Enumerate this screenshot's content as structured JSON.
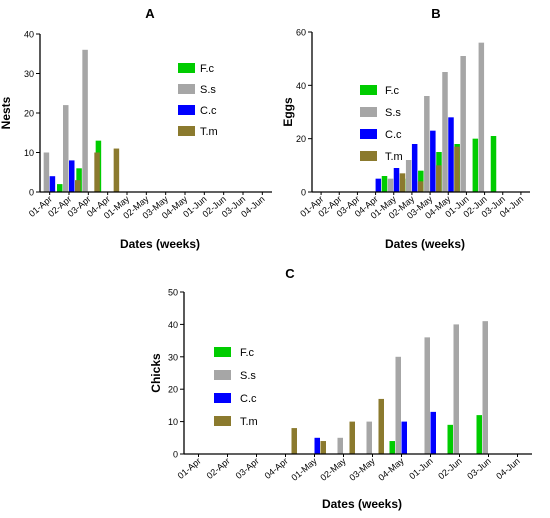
{
  "colors": {
    "F.c": "#00cc00",
    "S.s": "#a6a6a6",
    "C.c": "#0000ff",
    "T.m": "#8b7a2e"
  },
  "chart_data": [
    {
      "id": "A",
      "type": "bar",
      "title": "A",
      "xlabel": "Dates (weeks)",
      "ylabel": "Nests",
      "ylim": [
        0,
        40
      ],
      "yticks": [
        0,
        10,
        20,
        30,
        40
      ],
      "grid": false,
      "legend_placement": "right",
      "categories": [
        "01-Apr",
        "02-Apr",
        "03-Apr",
        "04-Apr",
        "01-May",
        "02-May",
        "03-May",
        "04-May",
        "01-Jun",
        "02-Jun",
        "03-Jun",
        "04-Jun"
      ],
      "series": [
        {
          "name": "F.c",
          "values": [
            0,
            2,
            6,
            13,
            0,
            0,
            0,
            0,
            0,
            0,
            0,
            0
          ]
        },
        {
          "name": "S.s",
          "values": [
            10,
            22,
            36,
            0,
            0,
            0,
            0,
            0,
            0,
            0,
            0,
            0
          ]
        },
        {
          "name": "C.c",
          "values": [
            4,
            8,
            0,
            0,
            0,
            0,
            0,
            0,
            0,
            0,
            0,
            0
          ]
        },
        {
          "name": "T.m",
          "values": [
            0,
            3,
            10,
            11,
            0,
            0,
            0,
            0,
            0,
            0,
            0,
            0
          ]
        }
      ]
    },
    {
      "id": "B",
      "type": "bar",
      "title": "B",
      "xlabel": "Dates (weeks)",
      "ylabel": "Eggs",
      "ylim": [
        0,
        60
      ],
      "yticks": [
        0,
        20,
        40,
        60
      ],
      "grid": false,
      "legend_placement": "left",
      "categories": [
        "01-Apr",
        "02-Apr",
        "03-Apr",
        "04-Apr",
        "01-May",
        "02-May",
        "03-May",
        "04-May",
        "01-Jun",
        "02-Jun",
        "03-Jun",
        "04-Jun"
      ],
      "series": [
        {
          "name": "F.c",
          "values": [
            0,
            0,
            0,
            0,
            6,
            5,
            8,
            15,
            18,
            20,
            21,
            0
          ]
        },
        {
          "name": "S.s",
          "values": [
            0,
            0,
            0,
            0,
            5,
            12,
            36,
            45,
            51,
            56,
            0,
            0
          ]
        },
        {
          "name": "C.c",
          "values": [
            0,
            0,
            0,
            5,
            9,
            18,
            23,
            28,
            0,
            0,
            0,
            0
          ]
        },
        {
          "name": "T.m",
          "values": [
            0,
            0,
            0,
            0,
            7,
            4,
            10,
            17,
            0,
            0,
            0,
            0
          ]
        }
      ]
    },
    {
      "id": "C",
      "type": "bar",
      "title": "C",
      "xlabel": "Dates (weeks)",
      "ylabel": "Chicks",
      "ylim": [
        0,
        50
      ],
      "yticks": [
        0,
        10,
        20,
        30,
        40,
        50
      ],
      "grid": false,
      "legend_placement": "left",
      "categories": [
        "01-Apr",
        "02-Apr",
        "03-Apr",
        "04-Apr",
        "01-May",
        "02-May",
        "03-May",
        "04-May",
        "01-Jun",
        "02-Jun",
        "03-Jun",
        "04-Jun"
      ],
      "series": [
        {
          "name": "F.c",
          "values": [
            0,
            0,
            0,
            0,
            0,
            0,
            0,
            4,
            0,
            9,
            12,
            0
          ]
        },
        {
          "name": "S.s",
          "values": [
            0,
            0,
            0,
            0,
            0,
            5,
            10,
            30,
            36,
            40,
            41,
            0
          ]
        },
        {
          "name": "C.c",
          "values": [
            0,
            0,
            0,
            0,
            5,
            0,
            0,
            10,
            13,
            0,
            0,
            0
          ]
        },
        {
          "name": "T.m",
          "values": [
            0,
            0,
            0,
            8,
            4,
            10,
            17,
            0,
            0,
            0,
            0,
            0
          ]
        }
      ]
    }
  ]
}
